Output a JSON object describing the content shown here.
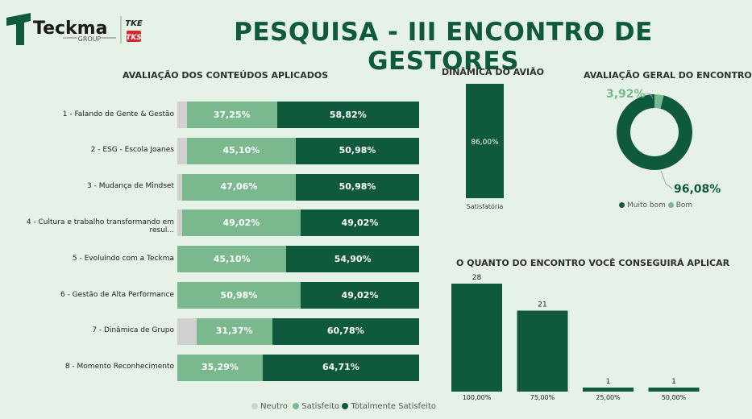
{
  "header": {
    "logo_text": "Teckma",
    "logo_sub": "GROUP",
    "badge_top": "TKE",
    "badge_bottom": "TKS",
    "title": "PESQUISA - III ENCONTRO DE GESTORES"
  },
  "colors": {
    "neutro": "#d0d0d0",
    "satisfeito": "#7ab88d",
    "totalmente": "#0f5a3c",
    "background": "#e6f2e8"
  },
  "chart_data": [
    {
      "id": "conteudos",
      "type": "bar",
      "orientation": "horizontal",
      "stacked": true,
      "title": "AVALIAÇÃO DOS CONTEÚDOS APLICADOS",
      "categories": [
        "1 - Falando de Gente & Gestão",
        "2 - ESG - Escola Joanes",
        "3 - Mudança de Mindset",
        "4 - Cultura e trabalho transformando em resul...",
        "5 - Evoluindo com a Teckma",
        "6 - Gestão de Alta Performance",
        "7 - Dinâmica de Grupo",
        "8 - Momento Reconhecimento"
      ],
      "series": [
        {
          "name": "Neutro",
          "values": [
            3.93,
            3.92,
            1.96,
            1.96,
            0,
            0,
            7.85,
            0
          ],
          "labels": [
            "",
            "",
            "",
            "",
            "",
            "",
            "",
            ""
          ]
        },
        {
          "name": "Satisfeito",
          "values": [
            37.25,
            45.1,
            47.06,
            49.02,
            45.1,
            50.98,
            31.37,
            35.29
          ],
          "labels": [
            "37,25%",
            "45,10%",
            "47,06%",
            "49,02%",
            "45,10%",
            "50,98%",
            "31,37%",
            "35,29%"
          ]
        },
        {
          "name": "Totalmente  Satisfeito",
          "values": [
            58.82,
            50.98,
            50.98,
            49.02,
            54.9,
            49.02,
            60.78,
            64.71
          ],
          "labels": [
            "58,82%",
            "50,98%",
            "50,98%",
            "49,02%",
            "54,90%",
            "49,02%",
            "60,78%",
            "64,71%"
          ]
        }
      ],
      "xlim": [
        0,
        100
      ],
      "legend": "bottom-right"
    },
    {
      "id": "aviao",
      "type": "bar",
      "title": "DINÂMICA DO AVIÃO",
      "categories": [
        "Satisfatória"
      ],
      "values": [
        86.0
      ],
      "labels": [
        "86,00%"
      ],
      "ylim": [
        0,
        86
      ]
    },
    {
      "id": "geral",
      "type": "pie",
      "donut": true,
      "title": "AVALIAÇÃO GERAL DO ENCONTRO",
      "categories": [
        "Muito bom",
        "Bom"
      ],
      "values": [
        96.08,
        3.92
      ],
      "labels": [
        "96,08%",
        "3,92%"
      ],
      "legend": "bottom"
    },
    {
      "id": "aplicar",
      "type": "bar",
      "title": "O QUANTO DO ENCONTRO VOCÊ CONSEGUIRÁ APLICAR",
      "categories": [
        "100,00%",
        "75,00%",
        "25,00%",
        "50,00%"
      ],
      "values": [
        28,
        21,
        1,
        1
      ],
      "labels": [
        "28",
        "21",
        "1",
        "1"
      ],
      "ylim": [
        0,
        28
      ]
    }
  ]
}
